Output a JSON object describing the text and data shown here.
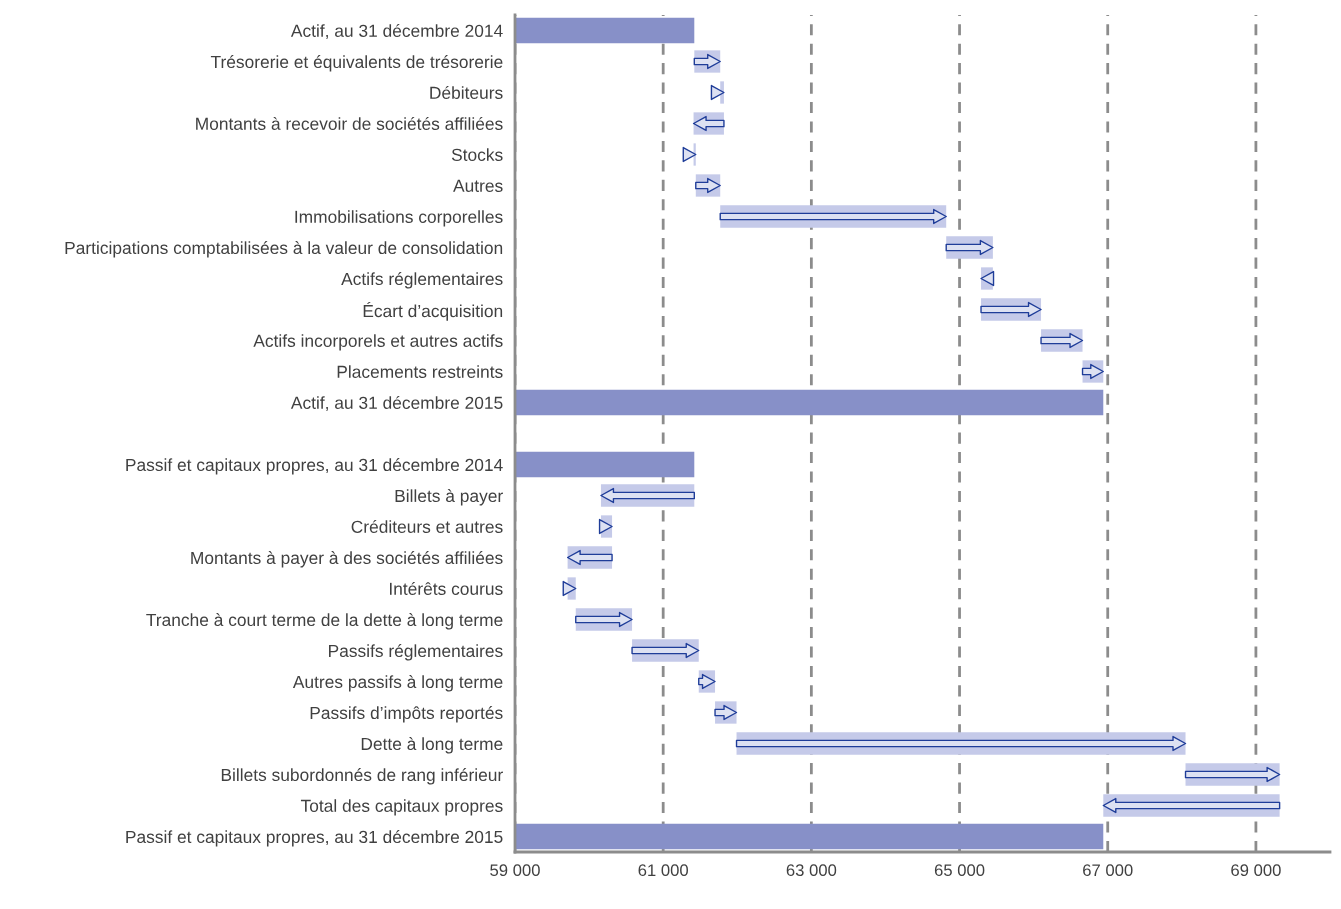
{
  "chart_data": {
    "type": "bar",
    "orientation": "horizontal",
    "categories": [
      "Actif, au 31 décembre 2014",
      "Trésorerie et équivalents de trésorerie",
      "Débiteurs",
      "Montants à recevoir de sociétés affiliées",
      "Stocks",
      "Autres",
      "Immobilisations corporelles",
      "Participations comptabilisées à la valeur de consolidation",
      "Actifs réglementaires",
      "Écart d’acquisition",
      "Actifs incorporels et autres actifs",
      "Placements restreints",
      "Actif, au 31 décembre 2015",
      null,
      "Passif et capitaux propres, au 31 décembre 2014",
      "Billets à payer",
      "Créditeurs et autres",
      "Montants à payer à des sociétés affiliées",
      "Intérêts courus",
      "Tranche à court terme de la dette à long terme",
      "Passifs réglementaires",
      "Autres passifs à long terme",
      "Passifs d’impôts reportés",
      "Dette à long terme",
      "Billets subordonnés de rang inférieur",
      "Total des capitaux propres",
      "Passif et capitaux propres, au 31 décembre 2015"
    ],
    "values": [
      61420,
      350,
      50,
      -410,
      30,
      330,
      3050,
      630,
      -160,
      810,
      560,
      280,
      66940,
      null,
      61420,
      -1260,
      150,
      -600,
      110,
      760,
      900,
      220,
      290,
      6060,
      1270,
      -2380,
      66940
    ],
    "base": [
      null,
      61420,
      61770,
      61820,
      61410,
      61440,
      61770,
      64820,
      65450,
      65290,
      66100,
      66660,
      null,
      null,
      null,
      61420,
      60160,
      60310,
      59710,
      59820,
      60580,
      61480,
      61700,
      61990,
      68050,
      69320,
      null
    ],
    "colors": [
      "#8790c8",
      "#c5cae9",
      "#c5cae9",
      "#c5cae9",
      "#c5cae9",
      "#c5cae9",
      "#c5cae9",
      "#c5cae9",
      "#c5cae9",
      "#c5cae9",
      "#c5cae9",
      "#c5cae9",
      "#8790c8",
      null,
      "#8790c8",
      "#c5cae9",
      "#c5cae9",
      "#c5cae9",
      "#c5cae9",
      "#c5cae9",
      "#c5cae9",
      "#c5cae9",
      "#c5cae9",
      "#c5cae9",
      "#c5cae9",
      "#c5cae9",
      "#8790c8"
    ],
    "xlim": [
      59000,
      70000
    ],
    "xticks": [
      {
        "value": 59000,
        "label": "59 000"
      },
      {
        "value": 61000,
        "label": "61 000"
      },
      {
        "value": 63000,
        "label": "63 000"
      },
      {
        "value": 65000,
        "label": "65 000"
      },
      {
        "value": 67000,
        "label": "67 000"
      },
      {
        "value": 69000,
        "label": "69 000"
      }
    ],
    "grid": "x"
  }
}
